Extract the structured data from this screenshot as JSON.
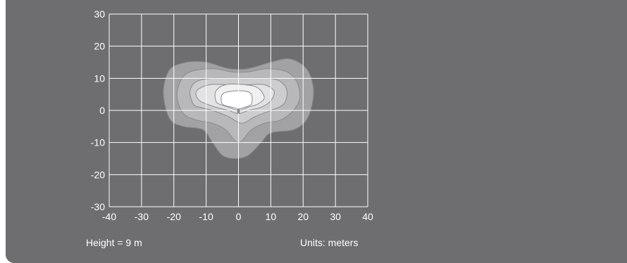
{
  "chart_data": {
    "type": "isolux_contour",
    "xlim": [
      -40,
      40
    ],
    "ylim": [
      -30,
      30
    ],
    "x_ticks": [
      -40,
      -30,
      -20,
      -10,
      0,
      10,
      20,
      30,
      40
    ],
    "y_ticks": [
      30,
      20,
      10,
      0,
      -10,
      -20,
      -30
    ],
    "x_tick_labels": [
      "-40",
      "-30",
      "-20",
      "-10",
      "0",
      "10",
      "20",
      "30",
      "40"
    ],
    "y_tick_labels": [
      "30",
      "20",
      "10",
      "0",
      "-10",
      "-20",
      "-30"
    ],
    "grid": true,
    "fixture_position": [
      0,
      0
    ],
    "contours": [
      {
        "level": 1,
        "fill": "#a2a2a5",
        "points": [
          [
            -21,
            -3
          ],
          [
            -23,
            3
          ],
          [
            -23,
            8
          ],
          [
            -21,
            13
          ],
          [
            -16,
            15
          ],
          [
            -10,
            15
          ],
          [
            -3,
            13
          ],
          [
            3,
            13
          ],
          [
            10,
            15
          ],
          [
            16,
            16
          ],
          [
            21,
            13
          ],
          [
            23,
            8
          ],
          [
            23,
            3
          ],
          [
            21,
            -3
          ],
          [
            17,
            -6
          ],
          [
            10,
            -7
          ],
          [
            7,
            -10
          ],
          [
            3,
            -14
          ],
          [
            -1,
            -15
          ],
          [
            -5,
            -14
          ],
          [
            -8,
            -10
          ],
          [
            -11,
            -6
          ],
          [
            -17,
            -5
          ]
        ]
      },
      {
        "level": 2,
        "fill": "#b8b8bb",
        "points": [
          [
            -17,
            -1
          ],
          [
            -19,
            4
          ],
          [
            -18,
            9
          ],
          [
            -15,
            12
          ],
          [
            -8,
            13
          ],
          [
            -2,
            12
          ],
          [
            3,
            12
          ],
          [
            9,
            13
          ],
          [
            15,
            12
          ],
          [
            18,
            9
          ],
          [
            19,
            4
          ],
          [
            17,
            0
          ],
          [
            13,
            -3
          ],
          [
            8,
            -4
          ],
          [
            4,
            -6
          ],
          [
            0,
            -10
          ],
          [
            -4,
            -6
          ],
          [
            -8,
            -4
          ],
          [
            -13,
            -3
          ]
        ]
      },
      {
        "level": 3,
        "fill": "#cdcdd0",
        "points": [
          [
            -14,
            2
          ],
          [
            -15,
            6
          ],
          [
            -13,
            9
          ],
          [
            -8,
            10
          ],
          [
            -2,
            10
          ],
          [
            3,
            10
          ],
          [
            9,
            10
          ],
          [
            13,
            9
          ],
          [
            15,
            6
          ],
          [
            14,
            2
          ],
          [
            10,
            0
          ],
          [
            5,
            -2
          ],
          [
            1,
            -4
          ],
          [
            -3,
            -2
          ],
          [
            -8,
            0
          ],
          [
            -12,
            1
          ]
        ]
      },
      {
        "level": 4,
        "fill": "#e2e2e4",
        "points": [
          [
            -12,
            3
          ],
          [
            -13,
            6
          ],
          [
            -9,
            8
          ],
          [
            -3,
            8
          ],
          [
            3,
            8
          ],
          [
            8,
            8
          ],
          [
            11,
            6
          ],
          [
            10,
            3
          ],
          [
            7,
            1
          ],
          [
            3,
            0
          ],
          [
            0,
            -1
          ],
          [
            -3,
            0
          ],
          [
            -7,
            1
          ]
        ]
      },
      {
        "level": 5,
        "fill": "#f0f0f1",
        "points": [
          [
            -7,
            3
          ],
          [
            -7,
            6
          ],
          [
            -4,
            8
          ],
          [
            2,
            8
          ],
          [
            6,
            7
          ],
          [
            8,
            4
          ],
          [
            6,
            2
          ],
          [
            3,
            1
          ],
          [
            0,
            0
          ],
          [
            -3,
            1
          ],
          [
            -6,
            2
          ]
        ]
      },
      {
        "level": 6,
        "fill": "#ffffff",
        "points": [
          [
            -5,
            2
          ],
          [
            -5,
            5
          ],
          [
            -2,
            6
          ],
          [
            2,
            6
          ],
          [
            4,
            5
          ],
          [
            4,
            2
          ],
          [
            2,
            1
          ],
          [
            0,
            0.5
          ],
          [
            -2,
            1
          ]
        ]
      }
    ]
  },
  "captions": {
    "height": "Height = 9 m",
    "units": "Units: meters"
  }
}
